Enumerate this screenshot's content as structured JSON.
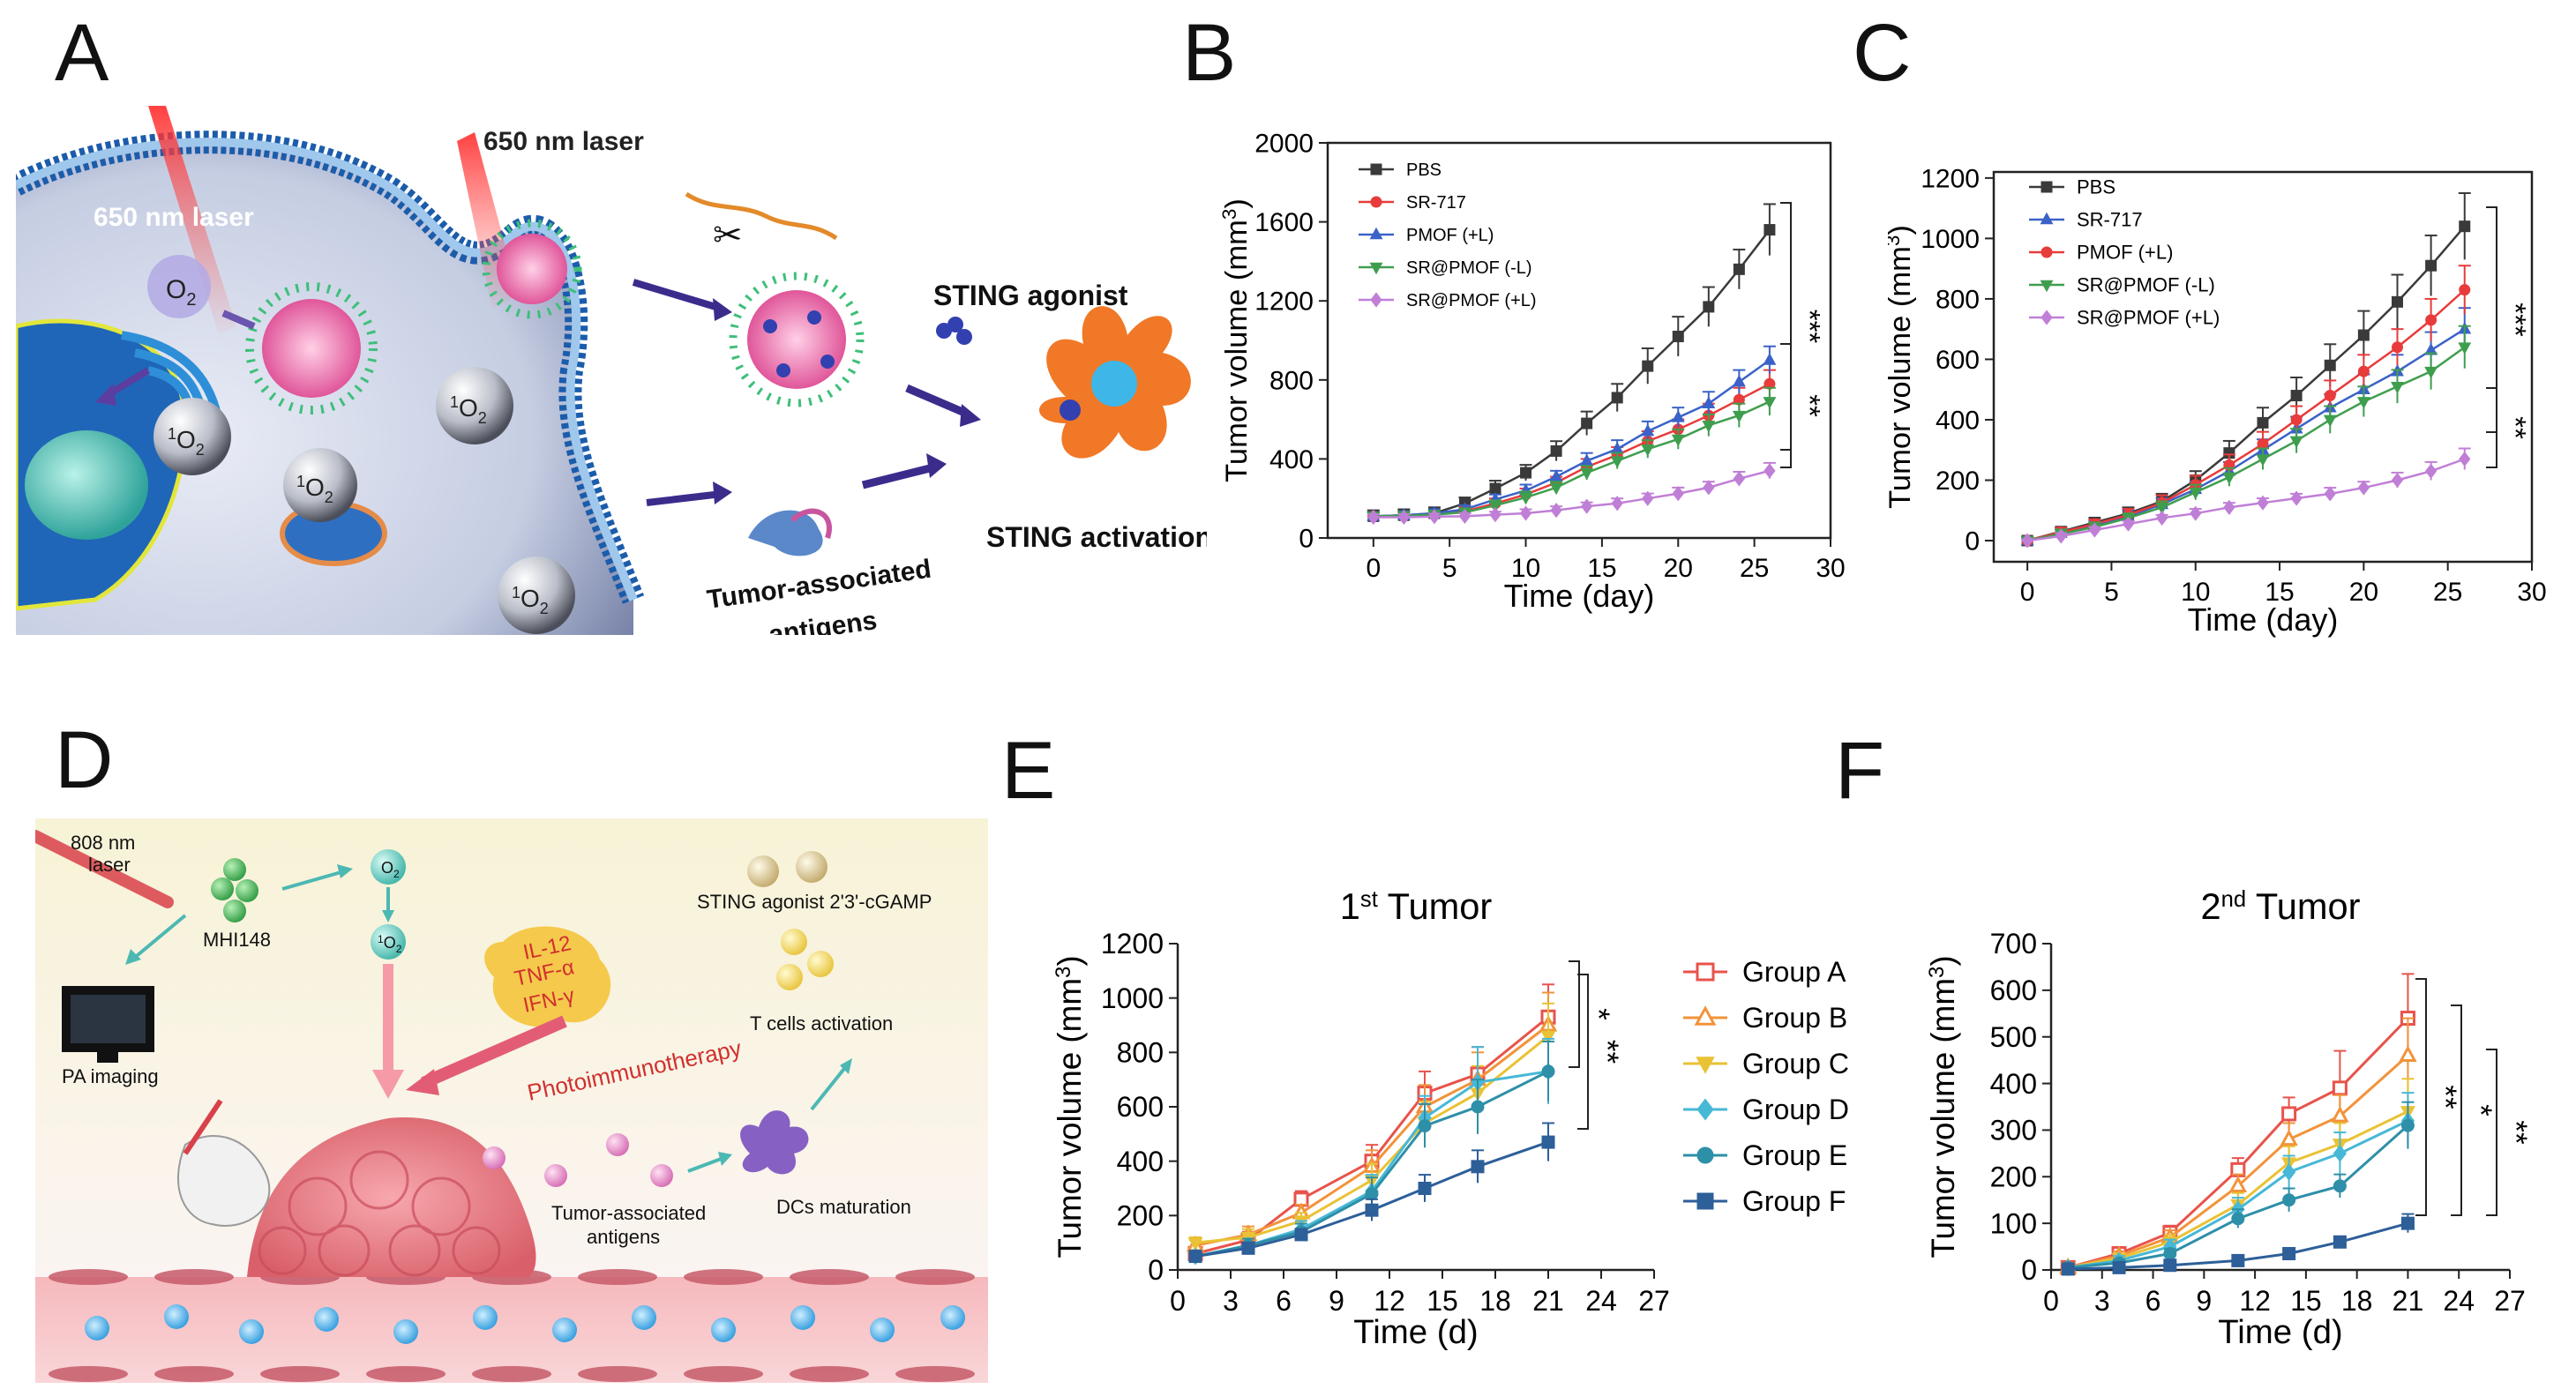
{
  "panels": {
    "A": "A",
    "B": "B",
    "C": "C",
    "D": "D",
    "E": "E",
    "F": "F"
  },
  "schemeA": {
    "laser1": "650 nm laser",
    "laser2": "650 nm laser",
    "o2": "O",
    "o2_sub": "2",
    "singlet": "O",
    "singlet_sup": "1",
    "singlet_sub": "2",
    "sting_agonist": "STING agonist",
    "sting_activation": "STING activation",
    "tumor_antigens_1": "Tumor-associated",
    "tumor_antigens_2": "antigens"
  },
  "schemeD": {
    "laser_1": "808 nm",
    "laser_2": "laser",
    "mhi": "MHI148",
    "pa": "PA imaging",
    "o2": "O",
    "o2_sub": "2",
    "singlet": "O",
    "singlet_sup": "1",
    "singlet_sub": "2",
    "cytokine_1": "IL-12",
    "cytokine_2": "TNF-α",
    "cytokine_3": "IFN-γ",
    "photoimmuno": "Photoimmunotherapy",
    "sting": "STING agonist 2'3'-cGAMP",
    "tcells": "T cells activation",
    "antigens_1": "Tumor-associated",
    "antigens_2": "antigens",
    "dcs": "DCs maturation"
  },
  "chart_data": [
    {
      "id": "B",
      "type": "line",
      "title": "",
      "xlabel": "Time (day)",
      "ylabel": "Tumor volume (mm",
      "ylabel_sup": "3",
      "ylabel_end": ")",
      "xlim": [
        -3,
        30
      ],
      "ylim": [
        0,
        2000
      ],
      "xticks": [
        0,
        5,
        10,
        15,
        20,
        25,
        30
      ],
      "yticks": [
        0,
        400,
        800,
        1200,
        1600,
        2000
      ],
      "x": [
        0,
        2,
        4,
        6,
        8,
        10,
        12,
        14,
        16,
        18,
        20,
        22,
        24,
        26
      ],
      "series": [
        {
          "name": "PBS",
          "color": "#3a3a3a",
          "marker": "square",
          "values": [
            110,
            115,
            125,
            175,
            250,
            330,
            440,
            580,
            710,
            870,
            1020,
            1170,
            1360,
            1560
          ],
          "err": [
            30,
            30,
            30,
            30,
            40,
            40,
            50,
            60,
            70,
            90,
            100,
            100,
            100,
            130
          ]
        },
        {
          "name": "SR-717",
          "color": "#e83b3b",
          "marker": "circle",
          "values": [
            110,
            112,
            120,
            135,
            175,
            220,
            280,
            360,
            420,
            490,
            550,
            620,
            700,
            780
          ],
          "err": [
            20,
            20,
            20,
            20,
            25,
            30,
            30,
            40,
            40,
            50,
            50,
            60,
            60,
            70
          ]
        },
        {
          "name": "PMOF (+L)",
          "color": "#3a62c8",
          "marker": "triangle",
          "values": [
            110,
            115,
            125,
            145,
            195,
            240,
            310,
            390,
            450,
            540,
            610,
            680,
            790,
            900
          ],
          "err": [
            20,
            20,
            20,
            20,
            25,
            30,
            30,
            40,
            45,
            50,
            50,
            60,
            60,
            70
          ]
        },
        {
          "name": "SR@PMOF (-L)",
          "color": "#3f9e4e",
          "marker": "tri-down",
          "values": [
            110,
            112,
            118,
            130,
            165,
            205,
            255,
            330,
            390,
            450,
            500,
            570,
            620,
            690
          ],
          "err": [
            20,
            20,
            20,
            20,
            25,
            30,
            30,
            35,
            40,
            45,
            50,
            55,
            60,
            70
          ]
        },
        {
          "name": "SR@PMOF (+L)",
          "color": "#c07fd6",
          "marker": "diamond",
          "values": [
            105,
            105,
            108,
            110,
            118,
            125,
            140,
            160,
            175,
            200,
            225,
            255,
            300,
            340
          ],
          "err": [
            15,
            15,
            15,
            15,
            15,
            20,
            20,
            20,
            25,
            25,
            30,
            30,
            35,
            40
          ]
        }
      ],
      "significance": [
        "***",
        "**"
      ]
    },
    {
      "id": "C",
      "type": "line",
      "title": "",
      "xlabel": "Time (day)",
      "ylabel": "Tumor volume (mm",
      "ylabel_sup": "3",
      "ylabel_end": ")",
      "xlim": [
        -2,
        30
      ],
      "ylim": [
        -70,
        1220
      ],
      "xticks": [
        0,
        5,
        10,
        15,
        20,
        25,
        30
      ],
      "yticks": [
        0,
        200,
        400,
        600,
        800,
        1000,
        1200
      ],
      "x": [
        0,
        2,
        4,
        6,
        8,
        10,
        12,
        14,
        16,
        18,
        20,
        22,
        24,
        26
      ],
      "series": [
        {
          "name": "PBS",
          "color": "#3a3a3a",
          "marker": "square",
          "values": [
            0,
            30,
            60,
            90,
            130,
            200,
            290,
            390,
            480,
            580,
            680,
            790,
            910,
            1040
          ],
          "err": [
            10,
            15,
            15,
            20,
            25,
            30,
            40,
            50,
            60,
            70,
            80,
            90,
            100,
            110
          ]
        },
        {
          "name": "SR-717",
          "color": "#3a62c8",
          "marker": "triangle",
          "values": [
            0,
            25,
            50,
            80,
            120,
            170,
            230,
            300,
            370,
            440,
            500,
            560,
            630,
            700
          ],
          "err": [
            10,
            15,
            15,
            20,
            20,
            25,
            30,
            35,
            40,
            45,
            50,
            55,
            60,
            70
          ]
        },
        {
          "name": "PMOF (+L)",
          "color": "#e83b3b",
          "marker": "circle",
          "values": [
            0,
            28,
            55,
            85,
            125,
            185,
            250,
            320,
            400,
            480,
            560,
            640,
            730,
            830
          ],
          "err": [
            10,
            15,
            15,
            20,
            25,
            30,
            35,
            40,
            45,
            50,
            55,
            60,
            70,
            80
          ]
        },
        {
          "name": "SR@PMOF (-L)",
          "color": "#3f9e4e",
          "marker": "tri-down",
          "values": [
            0,
            22,
            45,
            75,
            110,
            160,
            210,
            270,
            330,
            400,
            460,
            510,
            560,
            640
          ],
          "err": [
            10,
            15,
            15,
            15,
            20,
            25,
            30,
            35,
            40,
            45,
            50,
            55,
            60,
            70
          ]
        },
        {
          "name": "SR@PMOF (+L)",
          "color": "#c07fd6",
          "marker": "diamond",
          "values": [
            0,
            15,
            35,
            55,
            75,
            90,
            110,
            125,
            140,
            155,
            175,
            200,
            230,
            270
          ],
          "err": [
            5,
            10,
            10,
            10,
            10,
            15,
            15,
            15,
            15,
            20,
            20,
            25,
            30,
            35
          ]
        }
      ],
      "significance": [
        "***",
        "**"
      ]
    },
    {
      "id": "E",
      "type": "line",
      "title": "1",
      "title_sup": "st",
      "title_end": " Tumor",
      "xlabel": "Time (d)",
      "ylabel": "Tumor volume (mm",
      "ylabel_sup": "3",
      "ylabel_end": ")",
      "xlim": [
        0,
        27
      ],
      "ylim": [
        0,
        1200
      ],
      "xticks": [
        0,
        3,
        6,
        9,
        12,
        15,
        18,
        21,
        24,
        27
      ],
      "yticks": [
        0,
        200,
        400,
        600,
        800,
        1000,
        1200
      ],
      "x": [
        1,
        4,
        7,
        11,
        14,
        17,
        21
      ],
      "series": [
        {
          "name": "Group A",
          "color": "#e8534b",
          "marker": "square-open",
          "values": [
            60,
            110,
            260,
            400,
            650,
            720,
            930
          ],
          "err": [
            20,
            30,
            30,
            60,
            80,
            100,
            120
          ]
        },
        {
          "name": "Group B",
          "color": "#f2933a",
          "marker": "triangle-open",
          "values": [
            90,
            130,
            210,
            380,
            600,
            700,
            900
          ],
          "err": [
            20,
            30,
            30,
            60,
            80,
            100,
            120
          ]
        },
        {
          "name": "Group C",
          "color": "#e9c235",
          "marker": "tri-down",
          "values": [
            100,
            120,
            180,
            330,
            540,
            650,
            860
          ],
          "err": [
            20,
            30,
            30,
            60,
            80,
            100,
            120
          ]
        },
        {
          "name": "Group D",
          "color": "#47b8d6",
          "marker": "diamond",
          "values": [
            50,
            90,
            150,
            290,
            560,
            690,
            730
          ],
          "err": [
            20,
            25,
            30,
            60,
            80,
            130,
            120
          ]
        },
        {
          "name": "Group E",
          "color": "#2e8fa8",
          "marker": "circle",
          "values": [
            50,
            90,
            140,
            280,
            530,
            600,
            730
          ],
          "err": [
            20,
            25,
            30,
            60,
            80,
            100,
            110
          ]
        },
        {
          "name": "Group F",
          "color": "#2d5f99",
          "marker": "square",
          "values": [
            50,
            80,
            130,
            220,
            300,
            380,
            470
          ],
          "err": [
            15,
            20,
            20,
            40,
            50,
            60,
            70
          ]
        }
      ],
      "significance": [
        "*",
        "**"
      ]
    },
    {
      "id": "F",
      "type": "line",
      "title": "2",
      "title_sup": "nd",
      "title_end": " Tumor",
      "xlabel": "Time (d)",
      "ylabel": "Tumor volume (mm",
      "ylabel_sup": "3",
      "ylabel_end": ")",
      "xlim": [
        0,
        27
      ],
      "ylim": [
        0,
        700
      ],
      "xticks": [
        0,
        3,
        6,
        9,
        12,
        15,
        18,
        21,
        24,
        27
      ],
      "yticks": [
        0,
        100,
        200,
        300,
        400,
        500,
        600,
        700
      ],
      "x": [
        1,
        4,
        7,
        11,
        14,
        17,
        21
      ],
      "series": [
        {
          "name": "Group A",
          "color": "#e8534b",
          "marker": "square-open",
          "values": [
            5,
            35,
            80,
            215,
            335,
            390,
            540
          ],
          "err": [
            5,
            10,
            15,
            25,
            35,
            80,
            95
          ]
        },
        {
          "name": "Group B",
          "color": "#f2933a",
          "marker": "triangle-open",
          "values": [
            5,
            30,
            70,
            180,
            280,
            330,
            460
          ],
          "err": [
            5,
            10,
            15,
            25,
            35,
            45,
            80
          ]
        },
        {
          "name": "Group C",
          "color": "#e9c235",
          "marker": "tri-down",
          "values": [
            5,
            25,
            60,
            140,
            230,
            270,
            340
          ],
          "err": [
            5,
            10,
            15,
            25,
            35,
            45,
            70
          ]
        },
        {
          "name": "Group D",
          "color": "#47b8d6",
          "marker": "diamond",
          "values": [
            5,
            20,
            50,
            130,
            210,
            250,
            320
          ],
          "err": [
            5,
            10,
            15,
            25,
            35,
            45,
            60
          ]
        },
        {
          "name": "Group E",
          "color": "#2e8fa8",
          "marker": "circle",
          "values": [
            5,
            15,
            35,
            110,
            150,
            180,
            310
          ],
          "err": [
            5,
            8,
            10,
            20,
            25,
            25,
            50
          ]
        },
        {
          "name": "Group F",
          "color": "#2d5f99",
          "marker": "square",
          "values": [
            2,
            5,
            10,
            20,
            35,
            60,
            100
          ],
          "err": [
            2,
            3,
            5,
            5,
            8,
            12,
            20
          ]
        }
      ],
      "significance": [
        "**",
        "*",
        "**"
      ]
    }
  ]
}
